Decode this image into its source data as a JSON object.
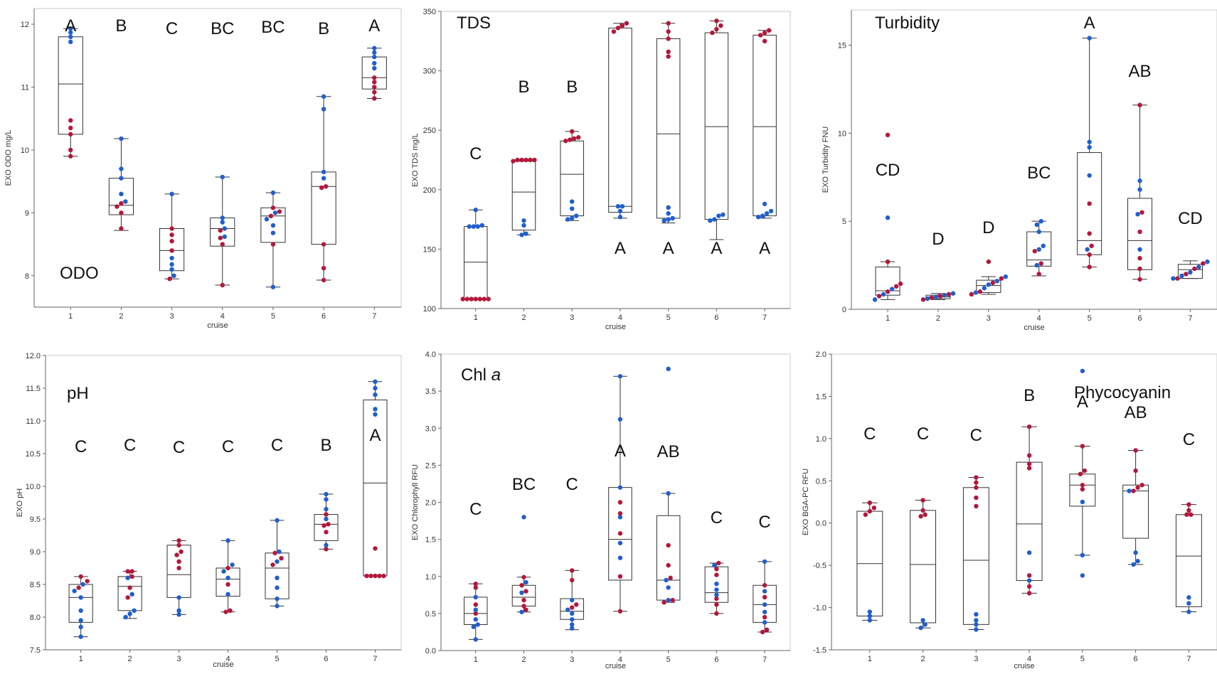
{
  "figure": {
    "colors": {
      "red_points": "#b5173a",
      "blue_points": "#1f5fcf",
      "box": "#333333",
      "axis": "#666666"
    }
  },
  "chart_data": [
    {
      "type": "box",
      "title": "ODO",
      "xlabel": "cruise",
      "ylabel": "EXO ODO mg/L",
      "ylim": [
        7.5,
        12.25
      ],
      "yticks": [
        8,
        9,
        10,
        11,
        12
      ],
      "categories": [
        "1",
        "2",
        "3",
        "4",
        "5",
        "6",
        "7"
      ],
      "letters": [
        "A",
        "B",
        "C",
        "BC",
        "BC",
        "B",
        "A"
      ],
      "boxes": [
        {
          "min": 9.9,
          "q1": 10.25,
          "median": 11.05,
          "q3": 11.8,
          "max": 11.93
        },
        {
          "min": 8.72,
          "q1": 8.97,
          "median": 9.12,
          "q3": 9.55,
          "max": 10.18
        },
        {
          "min": 7.95,
          "q1": 8.08,
          "median": 8.4,
          "q3": 8.75,
          "max": 9.3
        },
        {
          "min": 7.85,
          "q1": 8.47,
          "median": 8.75,
          "q3": 8.92,
          "max": 9.57
        },
        {
          "min": 7.82,
          "q1": 8.53,
          "median": 8.95,
          "q3": 9.08,
          "max": 9.32
        },
        {
          "min": 7.93,
          "q1": 8.5,
          "median": 9.42,
          "q3": 9.65,
          "max": 10.85
        },
        {
          "min": 10.82,
          "q1": 10.97,
          "median": 11.15,
          "q3": 11.48,
          "max": 11.62
        }
      ],
      "points": [
        {
          "blue": [
            11.93,
            11.87,
            11.8,
            11.72
          ],
          "red": [
            10.47,
            10.35,
            10.25,
            10.0,
            9.9
          ]
        },
        {
          "blue": [
            10.18,
            9.7,
            9.55,
            9.3,
            9.18
          ],
          "red": [
            9.15,
            9.1,
            9.0,
            8.75
          ]
        },
        {
          "blue": [
            9.3,
            8.28,
            8.18,
            8.1,
            8.0
          ],
          "red": [
            8.75,
            8.65,
            8.55,
            8.4,
            7.95
          ]
        },
        {
          "blue": [
            9.57,
            8.92,
            8.85,
            8.75,
            8.62
          ],
          "red": [
            8.72,
            8.6,
            8.5,
            7.85
          ]
        },
        {
          "blue": [
            9.32,
            9.0,
            8.9,
            8.8,
            8.68,
            7.82
          ],
          "red": [
            9.08,
            9.02,
            8.95,
            8.5
          ]
        },
        {
          "blue": [
            10.85,
            10.65,
            9.65,
            9.55
          ],
          "red": [
            9.42,
            9.4,
            8.5,
            8.12,
            7.93
          ]
        },
        {
          "blue": [
            11.62,
            11.55,
            11.48,
            11.38,
            11.3
          ],
          "red": [
            11.15,
            11.08,
            11.0,
            10.92,
            10.82
          ]
        }
      ]
    },
    {
      "type": "box",
      "title": "TDS",
      "xlabel": "cruise",
      "ylabel": "EXO TDS mg/L",
      "ylim": [
        100,
        350
      ],
      "yticks": [
        100,
        150,
        200,
        250,
        300,
        350
      ],
      "categories": [
        "1",
        "2",
        "3",
        "4",
        "5",
        "6",
        "7"
      ],
      "letters": [
        "C",
        "B",
        "B",
        "A",
        "A",
        "A",
        "A"
      ],
      "boxes": [
        {
          "min": 108,
          "q1": 108,
          "median": 139,
          "q3": 169,
          "max": 183
        },
        {
          "min": 162,
          "q1": 166,
          "median": 198,
          "q3": 224,
          "max": 225
        },
        {
          "min": 174,
          "q1": 178,
          "median": 213,
          "q3": 241,
          "max": 249
        },
        {
          "min": 176,
          "q1": 181,
          "median": 186,
          "q3": 336,
          "max": 340
        },
        {
          "min": 172,
          "q1": 176,
          "median": 247,
          "q3": 327,
          "max": 340
        },
        {
          "min": 158,
          "q1": 175,
          "median": 253,
          "q3": 332,
          "max": 342
        },
        {
          "min": 176,
          "q1": 178,
          "median": 253,
          "q3": 330,
          "max": 334
        }
      ],
      "points": [
        {
          "blue": [
            183,
            170,
            169,
            169,
            169
          ],
          "red": [
            108,
            108,
            108,
            108,
            108,
            108,
            108
          ]
        },
        {
          "blue": [
            174,
            170,
            163,
            162
          ],
          "red": [
            225,
            225,
            225,
            225,
            225,
            224
          ]
        },
        {
          "blue": [
            190,
            184,
            178,
            176,
            175
          ],
          "red": [
            249,
            244,
            243,
            242,
            241
          ]
        },
        {
          "blue": [
            186,
            186,
            182,
            177
          ],
          "red": [
            340,
            338,
            336,
            333
          ]
        },
        {
          "blue": [
            185,
            180,
            176,
            175,
            174
          ],
          "red": [
            340,
            333,
            327,
            316,
            312
          ]
        },
        {
          "blue": [
            179,
            178,
            175,
            174
          ],
          "red": [
            342,
            338,
            335,
            332
          ]
        },
        {
          "blue": [
            188,
            182,
            180,
            178,
            177
          ],
          "red": [
            334,
            332,
            330,
            325
          ]
        }
      ]
    },
    {
      "type": "box",
      "title": "Turbidity",
      "xlabel": "cruise",
      "ylabel": "EXO Turbidity FNU",
      "ylim": [
        0,
        17
      ],
      "yticks": [
        0,
        5,
        10,
        15
      ],
      "categories": [
        "1",
        "2",
        "3",
        "4",
        "5",
        "6",
        "7"
      ],
      "letters": [
        "CD",
        "D",
        "D",
        "BC",
        "A",
        "AB",
        "CD"
      ],
      "boxes": [
        {
          "min": 0.55,
          "q1": 0.8,
          "median": 1.05,
          "q3": 2.4,
          "max": 2.7
        },
        {
          "min": 0.55,
          "q1": 0.6,
          "median": 0.7,
          "q3": 0.8,
          "max": 0.9
        },
        {
          "min": 0.85,
          "q1": 0.95,
          "median": 1.35,
          "q3": 1.65,
          "max": 1.85
        },
        {
          "min": 1.9,
          "q1": 2.45,
          "median": 2.8,
          "q3": 4.4,
          "max": 5.0
        },
        {
          "min": 2.4,
          "q1": 3.1,
          "median": 3.9,
          "q3": 8.9,
          "max": 15.4
        },
        {
          "min": 1.7,
          "q1": 2.25,
          "median": 3.9,
          "q3": 6.3,
          "max": 11.6
        },
        {
          "min": 1.75,
          "q1": 1.75,
          "median": 2.25,
          "q3": 2.55,
          "max": 2.75
        }
      ],
      "points": [
        {
          "blue": [
            5.2,
            1.15,
            0.85,
            0.55
          ],
          "red": [
            9.9,
            2.7,
            1.45,
            1.3,
            1.0,
            0.75
          ]
        },
        {
          "blue": [
            0.9,
            0.8,
            0.7,
            0.6
          ],
          "red": [
            0.85,
            0.75,
            0.65,
            0.55
          ]
        },
        {
          "blue": [
            1.85,
            1.6,
            1.4,
            1.2,
            0.95
          ],
          "red": [
            2.7,
            1.75,
            1.5,
            1.0,
            0.85
          ]
        },
        {
          "blue": [
            5.0,
            4.8,
            4.4,
            3.6,
            3.4,
            2.5
          ],
          "red": [
            3.3,
            2.6,
            2.0
          ]
        },
        {
          "blue": [
            15.4,
            9.5,
            9.2,
            7.6,
            3.4
          ],
          "red": [
            6.0,
            4.3,
            3.6,
            3.1,
            2.4
          ]
        },
        {
          "blue": [
            7.3,
            6.8,
            5.4,
            3.4
          ],
          "red": [
            11.6,
            5.5,
            4.4,
            2.9,
            2.3,
            1.7
          ]
        },
        {
          "blue": [
            2.7,
            2.4,
            2.1,
            1.9,
            1.75
          ],
          "red": [
            2.6,
            2.3,
            2.0,
            1.75
          ]
        }
      ]
    },
    {
      "type": "box",
      "title": "pH",
      "xlabel": "cruise",
      "ylabel": "EXO pH",
      "ylim": [
        7.5,
        12.0
      ],
      "yticks": [
        7.5,
        8.0,
        8.5,
        9.0,
        9.5,
        10.0,
        10.5,
        11.0,
        11.5,
        12.0
      ],
      "categories": [
        "1",
        "2",
        "3",
        "4",
        "5",
        "6",
        "7"
      ],
      "letters": [
        "C",
        "C",
        "C",
        "C",
        "C",
        "B",
        "A"
      ],
      "boxes": [
        {
          "min": 7.7,
          "q1": 7.92,
          "median": 8.3,
          "q3": 8.5,
          "max": 8.62
        },
        {
          "min": 7.98,
          "q1": 8.1,
          "median": 8.47,
          "q3": 8.62,
          "max": 8.7
        },
        {
          "min": 8.04,
          "q1": 8.3,
          "median": 8.65,
          "q3": 9.1,
          "max": 9.17
        },
        {
          "min": 8.08,
          "q1": 8.32,
          "median": 8.58,
          "q3": 8.75,
          "max": 9.17
        },
        {
          "min": 8.17,
          "q1": 8.28,
          "median": 8.75,
          "q3": 8.98,
          "max": 9.48
        },
        {
          "min": 9.04,
          "q1": 9.17,
          "median": 9.42,
          "q3": 9.57,
          "max": 9.88
        },
        {
          "min": 8.63,
          "q1": 8.63,
          "median": 10.05,
          "q3": 11.32,
          "max": 11.6
        }
      ],
      "points": [
        {
          "blue": [
            8.5,
            8.4,
            8.3,
            8.1,
            7.95,
            7.85,
            7.7
          ],
          "red": [
            8.62,
            8.55,
            8.45
          ]
        },
        {
          "blue": [
            8.6,
            8.35,
            8.1,
            8.05,
            8.0
          ],
          "red": [
            8.7,
            8.7,
            8.62,
            8.45,
            8.3
          ]
        },
        {
          "blue": [
            8.3,
            8.1,
            8.04
          ],
          "red": [
            9.17,
            9.1,
            9.0,
            8.95,
            8.85,
            8.75
          ]
        },
        {
          "blue": [
            9.17,
            8.8,
            8.7,
            8.6,
            8.35
          ],
          "red": [
            8.75,
            8.5,
            8.1,
            8.08
          ]
        },
        {
          "blue": [
            9.48,
            9.0,
            8.85,
            8.6,
            8.45,
            8.28,
            8.17
          ],
          "red": [
            8.98,
            8.9,
            8.8
          ]
        },
        {
          "blue": [
            9.88,
            9.8,
            9.65,
            9.5,
            9.1
          ],
          "red": [
            9.57,
            9.42,
            9.4,
            9.3,
            9.04
          ]
        },
        {
          "blue": [
            11.6,
            11.5,
            11.4,
            11.18,
            11.1
          ],
          "red": [
            9.05,
            8.63,
            8.63,
            8.63,
            8.63,
            8.63
          ]
        }
      ]
    },
    {
      "type": "box",
      "title": "Chl a",
      "xlabel": "cruise",
      "ylabel": "EXO Chlorophyll RFU",
      "ylim": [
        0,
        4.0
      ],
      "yticks": [
        0,
        0.5,
        1.0,
        1.5,
        2.0,
        2.5,
        3.0,
        3.5,
        4.0
      ],
      "categories": [
        "1",
        "2",
        "3",
        "4",
        "5",
        "6",
        "7"
      ],
      "letters": [
        "C",
        "BC",
        "C",
        "A",
        "AB",
        "C",
        "C"
      ],
      "boxes": [
        {
          "min": 0.15,
          "q1": 0.35,
          "median": 0.5,
          "q3": 0.72,
          "max": 0.9
        },
        {
          "min": 0.52,
          "q1": 0.6,
          "median": 0.72,
          "q3": 0.88,
          "max": 0.99
        },
        {
          "min": 0.28,
          "q1": 0.42,
          "median": 0.53,
          "q3": 0.7,
          "max": 1.08
        },
        {
          "min": 0.53,
          "q1": 0.95,
          "median": 1.5,
          "q3": 2.2,
          "max": 3.7
        },
        {
          "min": 0.65,
          "q1": 0.68,
          "median": 0.95,
          "q3": 1.82,
          "max": 2.12
        },
        {
          "min": 0.5,
          "q1": 0.65,
          "median": 0.78,
          "q3": 1.13,
          "max": 1.18
        },
        {
          "min": 0.25,
          "q1": 0.38,
          "median": 0.62,
          "q3": 0.88,
          "max": 1.2
        }
      ],
      "points": [
        {
          "blue": [
            0.72,
            0.55,
            0.42,
            0.35,
            0.32,
            0.15
          ],
          "red": [
            0.9,
            0.85,
            0.62,
            0.5
          ]
        },
        {
          "blue": [
            1.8,
            0.92,
            0.78,
            0.52
          ],
          "red": [
            0.99,
            0.88,
            0.8,
            0.68,
            0.6,
            0.55
          ]
        },
        {
          "blue": [
            0.68,
            0.55,
            0.5,
            0.42,
            0.35,
            0.3
          ],
          "red": [
            1.08,
            0.95,
            0.62,
            0.58
          ]
        },
        {
          "blue": [
            3.7,
            3.12,
            2.2,
            1.8,
            1.45,
            1.25
          ],
          "red": [
            2.0,
            1.85,
            1.58,
            1.0,
            0.53
          ]
        },
        {
          "blue": [
            3.8,
            2.12,
            0.95,
            0.85,
            0.68
          ],
          "red": [
            1.42,
            1.15,
            0.98,
            0.68,
            0.65
          ]
        },
        {
          "blue": [
            1.15,
            0.9,
            0.82,
            0.75
          ],
          "red": [
            1.18,
            1.1,
            1.02,
            0.7,
            0.62,
            0.5
          ]
        },
        {
          "blue": [
            1.2,
            0.8,
            0.62,
            0.52,
            0.38
          ],
          "red": [
            0.88,
            0.72,
            0.45,
            0.28,
            0.25
          ]
        }
      ]
    },
    {
      "type": "box",
      "title": "Phycocyanin",
      "xlabel": "cruise",
      "ylabel": "EXO BGA-PC RFU",
      "ylim": [
        -1.5,
        2.0
      ],
      "yticks": [
        -1.5,
        -1.0,
        -0.5,
        0.0,
        0.5,
        1.0,
        1.5,
        2.0
      ],
      "categories": [
        "1",
        "2",
        "3",
        "4",
        "5",
        "6",
        "7"
      ],
      "letters": [
        "C",
        "C",
        "C",
        "B",
        "A",
        "AB",
        "C"
      ],
      "boxes": [
        {
          "min": -1.15,
          "q1": -1.1,
          "median": -0.48,
          "q3": 0.14,
          "max": 0.24
        },
        {
          "min": -1.24,
          "q1": -1.18,
          "median": -0.49,
          "q3": 0.15,
          "max": 0.27
        },
        {
          "min": -1.26,
          "q1": -1.2,
          "median": -0.44,
          "q3": 0.42,
          "max": 0.54
        },
        {
          "min": -0.83,
          "q1": -0.68,
          "median": -0.01,
          "q3": 0.72,
          "max": 1.14
        },
        {
          "min": -0.38,
          "q1": 0.2,
          "median": 0.45,
          "q3": 0.58,
          "max": 0.91
        },
        {
          "min": -0.49,
          "q1": -0.18,
          "median": 0.38,
          "q3": 0.45,
          "max": 0.86
        },
        {
          "min": -1.05,
          "q1": -0.99,
          "median": -0.39,
          "q3": 0.1,
          "max": 0.22
        }
      ],
      "points": [
        {
          "blue": [
            -1.05,
            -1.1,
            -1.15
          ],
          "red": [
            0.24,
            0.18,
            0.14,
            0.1
          ]
        },
        {
          "blue": [
            -1.15,
            -1.2,
            -1.24
          ],
          "red": [
            0.27,
            0.15,
            0.1,
            0.08
          ]
        },
        {
          "blue": [
            -1.08,
            -1.15,
            -1.2,
            -1.26
          ],
          "red": [
            0.54,
            0.48,
            0.42,
            0.3,
            0.2
          ]
        },
        {
          "blue": [
            -0.35,
            -0.68
          ],
          "red": [
            1.14,
            0.8,
            0.7,
            0.65,
            -0.62,
            -0.75,
            -0.83
          ]
        },
        {
          "blue": [
            1.8,
            0.25,
            -0.38,
            -0.62
          ],
          "red": [
            0.91,
            0.62,
            0.58,
            0.45,
            0.4
          ]
        },
        {
          "blue": [
            0.38,
            -0.35,
            -0.45,
            -0.49
          ],
          "red": [
            0.86,
            0.62,
            0.45,
            0.42,
            0.38
          ]
        },
        {
          "blue": [
            -0.88,
            -0.95,
            -1.05
          ],
          "red": [
            0.22,
            0.15,
            0.1,
            0.1
          ]
        }
      ]
    }
  ]
}
